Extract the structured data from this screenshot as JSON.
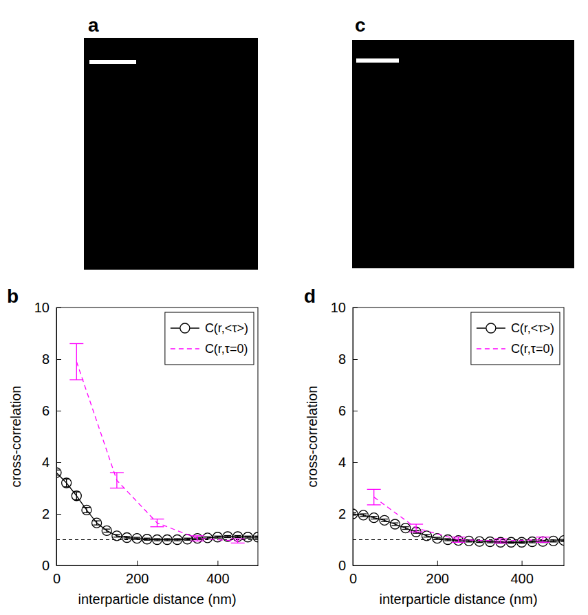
{
  "chart_data": [
    {
      "type": "line",
      "label": "b",
      "xlabel": "interparticle distance (nm)",
      "ylabel": "cross-correlation",
      "xlim": [
        0,
        500
      ],
      "xticks": [
        0,
        200,
        400
      ],
      "ylim": [
        0,
        10
      ],
      "yticks": [
        0,
        2,
        4,
        6,
        8,
        10
      ],
      "hline": 1,
      "legend": "upper right",
      "series": [
        {
          "name": "C(r,<τ>)",
          "color": "#000000",
          "marker": "circle",
          "line_style": "solid",
          "x": [
            0,
            25,
            50,
            75,
            100,
            125,
            150,
            175,
            200,
            225,
            250,
            275,
            300,
            325,
            350,
            375,
            400,
            425,
            450,
            475,
            500
          ],
          "values": [
            3.6,
            3.2,
            2.7,
            2.15,
            1.65,
            1.35,
            1.15,
            1.08,
            1.05,
            1.02,
            1.0,
            1.0,
            1.0,
            1.02,
            1.05,
            1.07,
            1.1,
            1.12,
            1.12,
            1.1,
            1.1
          ],
          "errors": [
            0.1,
            0.15,
            0.15,
            0.1,
            0.08,
            0.06,
            0.05,
            0.05,
            0.04,
            0.04,
            0.04,
            0.04,
            0.04,
            0.04,
            0.04,
            0.04,
            0.04,
            0.04,
            0.04,
            0.04,
            0.04
          ]
        },
        {
          "name": "C(r,τ=0)",
          "color": "#ff00ff",
          "marker": "none",
          "line_style": "dashed",
          "x": [
            50,
            150,
            250,
            350,
            450
          ],
          "values": [
            7.9,
            3.3,
            1.65,
            1.05,
            0.95
          ],
          "errors": [
            0.7,
            0.3,
            0.15,
            0.1,
            0.08
          ]
        }
      ]
    },
    {
      "type": "line",
      "label": "d",
      "xlabel": "interparticle distance (nm)",
      "ylabel": "cross-correlation",
      "xlim": [
        0,
        500
      ],
      "xticks": [
        0,
        200,
        400
      ],
      "ylim": [
        0,
        10
      ],
      "yticks": [
        0,
        2,
        4,
        6,
        8,
        10
      ],
      "hline": 1,
      "legend": "upper right",
      "series": [
        {
          "name": "C(r,<τ>)",
          "color": "#000000",
          "marker": "circle",
          "line_style": "solid",
          "x": [
            0,
            25,
            50,
            75,
            100,
            125,
            150,
            175,
            200,
            225,
            250,
            275,
            300,
            325,
            350,
            375,
            400,
            425,
            450,
            475,
            500
          ],
          "values": [
            2.0,
            1.95,
            1.85,
            1.75,
            1.6,
            1.45,
            1.3,
            1.15,
            1.05,
            1.0,
            0.97,
            0.95,
            0.93,
            0.92,
            0.9,
            0.9,
            0.9,
            0.92,
            0.93,
            0.95,
            0.97
          ],
          "errors": [
            0.05,
            0.05,
            0.05,
            0.05,
            0.05,
            0.05,
            0.05,
            0.05,
            0.04,
            0.04,
            0.04,
            0.04,
            0.04,
            0.04,
            0.04,
            0.04,
            0.04,
            0.04,
            0.04,
            0.04,
            0.04
          ]
        },
        {
          "name": "C(r,τ=0)",
          "color": "#ff00ff",
          "marker": "none",
          "line_style": "dashed",
          "x": [
            50,
            150,
            250,
            350,
            450
          ],
          "values": [
            2.65,
            1.45,
            1.0,
            0.95,
            1.0
          ],
          "errors": [
            0.3,
            0.15,
            0.1,
            0.08,
            0.1
          ]
        }
      ]
    }
  ],
  "images": [
    {
      "label": "a"
    },
    {
      "label": "c"
    }
  ]
}
